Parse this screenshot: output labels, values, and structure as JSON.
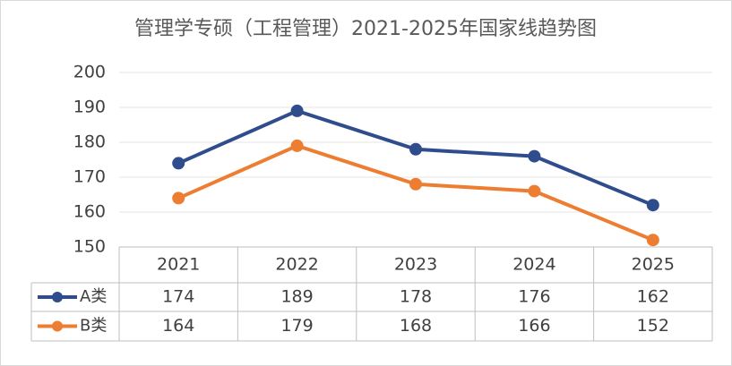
{
  "chart_data": {
    "type": "line",
    "title": "管理学专硕（工程管理）2021-2025年国家线趋势图",
    "categories": [
      "2021",
      "2022",
      "2023",
      "2024",
      "2025"
    ],
    "series": [
      {
        "name": "A类",
        "color": "#2f4d8c",
        "values": [
          174,
          189,
          178,
          176,
          162
        ]
      },
      {
        "name": "B类",
        "color": "#ed7d31",
        "values": [
          164,
          179,
          168,
          166,
          152
        ]
      }
    ],
    "ylim": [
      150,
      200
    ],
    "yticks": [
      150,
      160,
      170,
      180,
      190,
      200
    ],
    "grid": true,
    "data_table": true
  }
}
